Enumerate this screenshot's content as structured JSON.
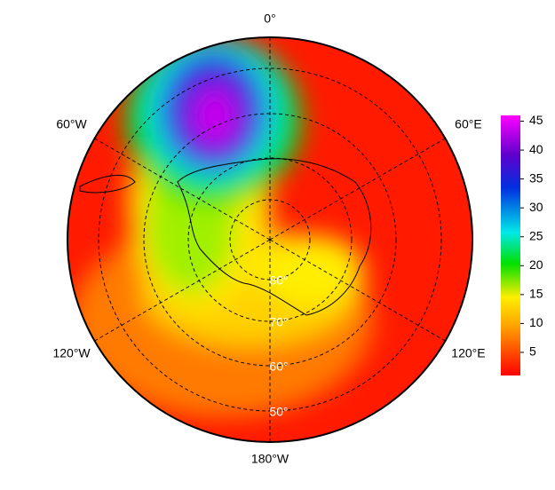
{
  "map": {
    "longitude_labels": [
      "0°",
      "60°E",
      "120°E",
      "180°W",
      "120°W",
      "60°W"
    ],
    "latitude_labels": [
      "80°",
      "70°",
      "60°",
      "50°"
    ],
    "colorbar": {
      "lim": [
        1,
        46
      ],
      "ticks": [
        5,
        10,
        15,
        20,
        25,
        30,
        35,
        40,
        45
      ]
    }
  }
}
